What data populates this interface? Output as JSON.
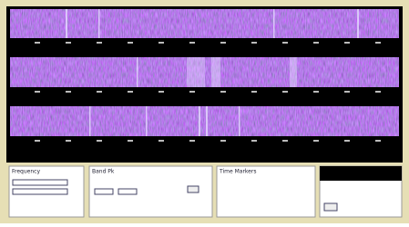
{
  "panels": [
    {
      "title": "Frequency"
    },
    {
      "title": "Band Pk"
    },
    {
      "title": "Time Markers"
    }
  ]
}
